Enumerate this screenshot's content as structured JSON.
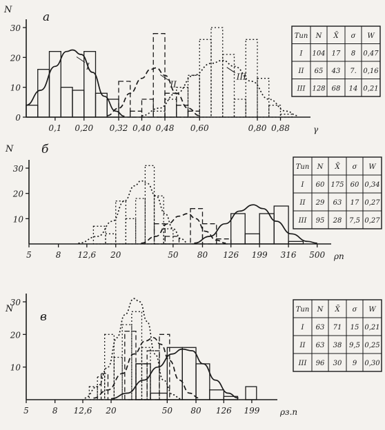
{
  "chart_data": [
    {
      "type": "bar",
      "panel_label": "а",
      "ylabel": "N",
      "xlabel": "γ",
      "yticks": [
        "0",
        "10",
        "20",
        "30"
      ],
      "ylim": [
        0,
        30
      ],
      "xlim": [
        0.0,
        0.96
      ],
      "xticks": [
        {
          "label": "0,1",
          "v": 0.1
        },
        {
          "label": "0,20",
          "v": 0.2
        },
        {
          "label": "0,32",
          "v": 0.32
        },
        {
          "label": "0,40",
          "v": 0.4
        },
        {
          "label": "0,48",
          "v": 0.48
        },
        {
          "label": "0,60",
          "v": 0.6
        },
        {
          "label": "0,80",
          "v": 0.8
        },
        {
          "label": "0,88",
          "v": 0.88
        }
      ],
      "series": [
        {
          "name": "I",
          "style": "solid",
          "bars": [
            {
              "x0": 0.0,
              "x1": 0.04,
              "v": 4
            },
            {
              "x0": 0.04,
              "x1": 0.08,
              "v": 16
            },
            {
              "x0": 0.08,
              "x1": 0.12,
              "v": 22
            },
            {
              "x0": 0.12,
              "x1": 0.16,
              "v": 10
            },
            {
              "x0": 0.16,
              "x1": 0.2,
              "v": 9
            },
            {
              "x0": 0.2,
              "x1": 0.24,
              "v": 22
            },
            {
              "x0": 0.24,
              "x1": 0.28,
              "v": 8
            },
            {
              "x0": 0.28,
              "x1": 0.32,
              "v": 6
            }
          ],
          "curve": [
            [
              0.0,
              4
            ],
            [
              0.05,
              9
            ],
            [
              0.1,
              17
            ],
            [
              0.14,
              22
            ],
            [
              0.16,
              22.5
            ],
            [
              0.19,
              21
            ],
            [
              0.23,
              15
            ],
            [
              0.27,
              7
            ],
            [
              0.31,
              2
            ],
            [
              0.34,
              0.3
            ]
          ]
        },
        {
          "name": "II",
          "style": "dashed",
          "bars": [
            {
              "x0": 0.32,
              "x1": 0.36,
              "v": 12
            },
            {
              "x0": 0.36,
              "x1": 0.4,
              "v": 2
            },
            {
              "x0": 0.4,
              "x1": 0.44,
              "v": 6
            },
            {
              "x0": 0.44,
              "x1": 0.48,
              "v": 28
            },
            {
              "x0": 0.48,
              "x1": 0.52,
              "v": 8
            },
            {
              "x0": 0.52,
              "x1": 0.56,
              "v": 4
            },
            {
              "x0": 0.56,
              "x1": 0.6,
              "v": 2
            }
          ],
          "curve": [
            [
              0.28,
              0.5
            ],
            [
              0.32,
              3
            ],
            [
              0.36,
              8
            ],
            [
              0.4,
              13
            ],
            [
              0.43,
              16
            ],
            [
              0.45,
              16.5
            ],
            [
              0.48,
              14
            ],
            [
              0.52,
              8
            ],
            [
              0.56,
              3
            ],
            [
              0.6,
              0.5
            ]
          ]
        },
        {
          "name": "III",
          "style": "dotted",
          "bars": [
            {
              "x0": 0.44,
              "x1": 0.48,
              "v": 2
            },
            {
              "x0": 0.48,
              "x1": 0.52,
              "v": 6
            },
            {
              "x0": 0.52,
              "x1": 0.56,
              "v": 10
            },
            {
              "x0": 0.56,
              "x1": 0.6,
              "v": 14
            },
            {
              "x0": 0.6,
              "x1": 0.64,
              "v": 26
            },
            {
              "x0": 0.64,
              "x1": 0.68,
              "v": 30
            },
            {
              "x0": 0.68,
              "x1": 0.72,
              "v": 21
            },
            {
              "x0": 0.72,
              "x1": 0.76,
              "v": 6
            },
            {
              "x0": 0.76,
              "x1": 0.8,
              "v": 26
            },
            {
              "x0": 0.8,
              "x1": 0.84,
              "v": 13
            },
            {
              "x0": 0.84,
              "x1": 0.88,
              "v": 4
            },
            {
              "x0": 0.88,
              "x1": 0.92,
              "v": 1
            }
          ],
          "curve": [
            [
              0.4,
              0.5
            ],
            [
              0.46,
              3
            ],
            [
              0.52,
              8
            ],
            [
              0.58,
              14
            ],
            [
              0.64,
              18
            ],
            [
              0.68,
              19
            ],
            [
              0.72,
              17
            ],
            [
              0.78,
              12
            ],
            [
              0.84,
              6
            ],
            [
              0.9,
              2
            ],
            [
              0.94,
              0.5
            ]
          ]
        }
      ],
      "table": {
        "headers": [
          "Тип",
          "N",
          "X̄",
          "σ",
          "W"
        ],
        "rows": [
          [
            "I",
            "104",
            "17",
            "8",
            "0,47"
          ],
          [
            "II",
            "65",
            "43",
            "7.",
            "0,16"
          ],
          [
            "III",
            "128",
            "68",
            "14",
            "0,21"
          ]
        ]
      }
    },
    {
      "type": "bar",
      "panel_label": "б",
      "ylabel": "N",
      "xlabel": "ρп",
      "yticks": [
        "10",
        "20",
        "30"
      ],
      "ylim": [
        0,
        30
      ],
      "xscale": "log",
      "xlim": [
        5,
        560
      ],
      "xticks": [
        {
          "label": "5",
          "v": 5
        },
        {
          "label": "8",
          "v": 8
        },
        {
          "label": "12,6",
          "v": 12.6
        },
        {
          "label": "20",
          "v": 20
        },
        {
          "label": "50",
          "v": 50
        },
        {
          "label": "80",
          "v": 80
        },
        {
          "label": "126",
          "v": 126
        },
        {
          "label": "199",
          "v": 199
        },
        {
          "label": "316",
          "v": 316
        },
        {
          "label": "500",
          "v": 500
        }
      ],
      "series": [
        {
          "name": "I",
          "style": "dotted",
          "bars": [
            {
              "x0": 14,
              "x1": 17,
              "v": 7
            },
            {
              "x0": 17,
              "x1": 20,
              "v": 4
            },
            {
              "x0": 20,
              "x1": 23.5,
              "v": 17
            },
            {
              "x0": 23.5,
              "x1": 27.5,
              "v": 10
            },
            {
              "x0": 27.5,
              "x1": 32,
              "v": 18
            },
            {
              "x0": 32,
              "x1": 37,
              "v": 31
            },
            {
              "x0": 37,
              "x1": 43,
              "v": 19
            },
            {
              "x0": 43,
              "x1": 50,
              "v": 6
            }
          ],
          "curve": [
            [
              11,
              0.3
            ],
            [
              15,
              3
            ],
            [
              19,
              9
            ],
            [
              23,
              17
            ],
            [
              27,
              23
            ],
            [
              30,
              25
            ],
            [
              33,
              24
            ],
            [
              38,
              19
            ],
            [
              44,
              12
            ],
            [
              50,
              6
            ],
            [
              57,
              2
            ],
            [
              63,
              0.5
            ]
          ]
        },
        {
          "name": "II",
          "style": "dashed",
          "bars": [
            {
              "x0": 37,
              "x1": 44,
              "v": 8
            },
            {
              "x0": 44,
              "x1": 55,
              "v": 3
            },
            {
              "x0": 66,
              "x1": 80,
              "v": 14
            },
            {
              "x0": 80,
              "x1": 100,
              "v": 8
            },
            {
              "x0": 100,
              "x1": 126,
              "v": 2
            }
          ],
          "curve": [
            [
              30,
              0.3
            ],
            [
              38,
              3
            ],
            [
              46,
              8
            ],
            [
              55,
              11
            ],
            [
              63,
              12
            ],
            [
              72,
              10
            ],
            [
              84,
              5
            ],
            [
              100,
              1.5
            ],
            [
              116,
              0.3
            ]
          ]
        },
        {
          "name": "III",
          "style": "solid",
          "bars": [
            {
              "x0": 126,
              "x1": 158,
              "v": 12
            },
            {
              "x0": 158,
              "x1": 199,
              "v": 4
            },
            {
              "x0": 199,
              "x1": 251,
              "v": 12
            },
            {
              "x0": 251,
              "x1": 316,
              "v": 15
            },
            {
              "x0": 316,
              "x1": 400,
              "v": 1
            }
          ],
          "curve": [
            [
              70,
              0.3
            ],
            [
              90,
              3
            ],
            [
              115,
              8
            ],
            [
              145,
              13
            ],
            [
              180,
              15.5
            ],
            [
              210,
              14
            ],
            [
              260,
              9
            ],
            [
              330,
              4
            ],
            [
              430,
              1
            ],
            [
              500,
              0.3
            ]
          ]
        }
      ],
      "table": {
        "headers": [
          "Тип",
          "N",
          "X̄",
          "σ",
          "W"
        ],
        "rows": [
          [
            "I",
            "60",
            "175",
            "60",
            "0,34"
          ],
          [
            "II",
            "29",
            "63",
            "17",
            "0,27"
          ],
          [
            "III",
            "95",
            "28",
            "7,5",
            "0,27"
          ]
        ]
      }
    },
    {
      "type": "bar",
      "panel_label": "в",
      "ylabel": "N",
      "xlabel": "ρз.п",
      "yticks": [
        "10",
        "20",
        "30"
      ],
      "ylim": [
        0,
        30
      ],
      "xscale": "log",
      "xlim": [
        5,
        270
      ],
      "xticks": [
        {
          "label": "5",
          "v": 5
        },
        {
          "label": "8",
          "v": 8
        },
        {
          "label": "12,6",
          "v": 12.6
        },
        {
          "label": "20",
          "v": 20
        },
        {
          "label": "50",
          "v": 50
        },
        {
          "label": "80",
          "v": 80
        },
        {
          "label": "126",
          "v": 126
        },
        {
          "label": "199",
          "v": 199
        }
      ],
      "series": [
        {
          "name": "I",
          "style": "dotted",
          "bars": [
            {
              "x0": 14,
              "x1": 16,
              "v": 4
            },
            {
              "x0": 16,
              "x1": 18,
              "v": 7
            },
            {
              "x0": 18,
              "x1": 21,
              "v": 20
            },
            {
              "x0": 21,
              "x1": 24,
              "v": 13
            },
            {
              "x0": 24,
              "x1": 28,
              "v": 23
            },
            {
              "x0": 28,
              "x1": 33,
              "v": 27
            },
            {
              "x0": 33,
              "x1": 38,
              "v": 16
            }
          ],
          "curve": [
            [
              13,
              0.5
            ],
            [
              16,
              4
            ],
            [
              19,
              10
            ],
            [
              22,
              19
            ],
            [
              25,
              26
            ],
            [
              29,
              31
            ],
            [
              32,
              30
            ],
            [
              36,
              24
            ],
            [
              41,
              14
            ],
            [
              47,
              6
            ],
            [
              55,
              1.5
            ],
            [
              62,
              0.3
            ]
          ]
        },
        {
          "name": "II",
          "style": "dashed",
          "bars": [
            {
              "x0": 17,
              "x1": 19,
              "v": 8
            },
            {
              "x0": 25,
              "x1": 30,
              "v": 21
            },
            {
              "x0": 30,
              "x1": 36,
              "v": 11
            },
            {
              "x0": 36,
              "x1": 44,
              "v": 15
            },
            {
              "x0": 44,
              "x1": 52,
              "v": 20
            }
          ],
          "curve": [
            [
              15,
              0.5
            ],
            [
              19,
              3
            ],
            [
              24,
              8
            ],
            [
              29,
              14
            ],
            [
              35,
              18
            ],
            [
              40,
              19
            ],
            [
              45,
              17
            ],
            [
              52,
              12
            ],
            [
              61,
              6
            ],
            [
              72,
              2
            ],
            [
              84,
              0.5
            ]
          ]
        },
        {
          "name": "III",
          "style": "solid",
          "bars": [
            {
              "x0": 30,
              "x1": 38,
              "v": 11
            },
            {
              "x0": 38,
              "x1": 50,
              "v": 2
            },
            {
              "x0": 50,
              "x1": 64,
              "v": 16
            },
            {
              "x0": 64,
              "x1": 80,
              "v": 16
            },
            {
              "x0": 80,
              "x1": 100,
              "v": 11
            },
            {
              "x0": 100,
              "x1": 126,
              "v": 3
            },
            {
              "x0": 126,
              "x1": 158,
              "v": 1
            },
            {
              "x0": 180,
              "x1": 215,
              "v": 4
            }
          ],
          "curve": [
            [
              20,
              0.3
            ],
            [
              26,
              2
            ],
            [
              34,
              6
            ],
            [
              43,
              10
            ],
            [
              54,
              14
            ],
            [
              64,
              15.5
            ],
            [
              75,
              15
            ],
            [
              90,
              11
            ],
            [
              110,
              6
            ],
            [
              135,
              2
            ],
            [
              160,
              0.5
            ]
          ]
        }
      ],
      "table": {
        "headers": [
          "Тип",
          "N",
          "X̄",
          "σ",
          "W"
        ],
        "rows": [
          [
            "I",
            "63",
            "71",
            "15",
            "0,21"
          ],
          [
            "II",
            "63",
            "38",
            "9,5",
            "0,25"
          ],
          [
            "III",
            "96",
            "30",
            "9",
            "0,30"
          ]
        ]
      }
    }
  ]
}
